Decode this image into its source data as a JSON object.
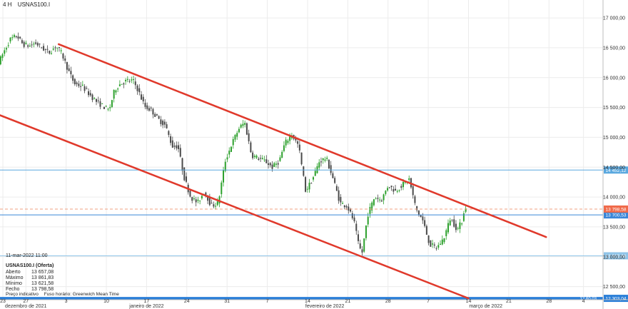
{
  "header": {
    "timeframe": "4 H",
    "symbol": "USNAS100.I"
  },
  "info": {
    "date": "11-mar-2022 11:00",
    "title": "USNAS100.I (Oferta)",
    "rows": [
      {
        "label": "Aberto",
        "value": "13 657,08"
      },
      {
        "label": "Máximo",
        "value": "13 861,83"
      },
      {
        "label": "Mínimo",
        "value": "13 621,58"
      },
      {
        "label": "Fecho",
        "value": "13 798,58"
      }
    ],
    "footer": [
      "Preço indicativo",
      "Fuso horário: Greenwich Mean Time"
    ]
  },
  "chart_data": {
    "type": "candlestick",
    "ylim": [
      12280,
      17300
    ],
    "grid": true,
    "price_ticks": [
      17000,
      16500,
      16000,
      15500,
      15000,
      14500,
      14000,
      13500,
      13000,
      12500
    ],
    "price_tick_labels": [
      "17 000,00",
      "16 500,00",
      "16 000,00",
      "15 500,00",
      "15 000,00",
      "14 500,00",
      "14 000,00",
      "13 500,00",
      "13 000,00",
      "12 500,00"
    ],
    "date_ticks": [
      {
        "day": 23,
        "label": "23"
      },
      {
        "day": 27,
        "label": "27"
      },
      {
        "day": 34,
        "label": "3"
      },
      {
        "day": 41,
        "label": "10"
      },
      {
        "day": 48,
        "label": "17"
      },
      {
        "day": 55,
        "label": "24"
      },
      {
        "day": 62,
        "label": "31"
      },
      {
        "day": 69,
        "label": "7"
      },
      {
        "day": 76,
        "label": "14"
      },
      {
        "day": 83,
        "label": "21"
      },
      {
        "day": 90,
        "label": "28"
      },
      {
        "day": 97,
        "label": "7"
      },
      {
        "day": 104,
        "label": "14"
      },
      {
        "day": 111,
        "label": "21"
      },
      {
        "day": 118,
        "label": "28"
      },
      {
        "day": 124,
        "label": "4"
      }
    ],
    "month_labels": [
      {
        "day": 27,
        "label": "dezembro de 2021"
      },
      {
        "day": 48,
        "label": "janeiro de 2022"
      },
      {
        "day": 79,
        "label": "fevereiro de 2022"
      },
      {
        "day": 107,
        "label": "março de 2022"
      }
    ],
    "xlim": [
      22.5,
      127.4
    ],
    "horizontal_levels": [
      {
        "value": 14452.12,
        "label": "14 452,12",
        "style": "solid",
        "color": "#5aa8df"
      },
      {
        "value": 13700.53,
        "label": "13 700,53",
        "style": "solid",
        "color": "#3a86d8"
      },
      {
        "value": 13015.66,
        "label": "13 015,66",
        "style": "solid",
        "color": "#8fc4e8"
      },
      {
        "value": 13798.58,
        "label": "13 798,58",
        "style": "dashed",
        "color": "#f0a080"
      },
      {
        "value": 12303.04,
        "label": "12 303,04",
        "style": "thick",
        "color": "#2b7fd8"
      }
    ],
    "bottom_bar_text": "12 60 03",
    "trendlines": [
      {
        "from": {
          "day": 32.7,
          "price": 16560
        },
        "to": {
          "day": 117.5,
          "price": 13330
        }
      },
      {
        "from": {
          "day": 22.5,
          "price": 15370
        },
        "to": {
          "day": 104,
          "price": 12303.04
        }
      }
    ],
    "price_path": [
      [
        22.6,
        16250
      ],
      [
        23.6,
        16450
      ],
      [
        24.6,
        16640
      ],
      [
        25.8,
        16700
      ],
      [
        26.8,
        16560
      ],
      [
        28.0,
        16530
      ],
      [
        29.0,
        16580
      ],
      [
        30.4,
        16480
      ],
      [
        31.4,
        16420
      ],
      [
        32.6,
        16530
      ],
      [
        33.6,
        16400
      ],
      [
        34.8,
        16100
      ],
      [
        35.8,
        15900
      ],
      [
        37.2,
        15850
      ],
      [
        38.4,
        15720
      ],
      [
        39.6,
        15600
      ],
      [
        40.8,
        15520
      ],
      [
        41.8,
        15450
      ],
      [
        42.8,
        15800
      ],
      [
        43.8,
        15900
      ],
      [
        45.0,
        15950
      ],
      [
        46.0,
        15950
      ],
      [
        46.8,
        15800
      ],
      [
        48.0,
        15520
      ],
      [
        49.2,
        15450
      ],
      [
        50.4,
        15300
      ],
      [
        51.6,
        15200
      ],
      [
        52.8,
        14850
      ],
      [
        53.8,
        14850
      ],
      [
        54.8,
        14350
      ],
      [
        56.0,
        14000
      ],
      [
        57.2,
        13900
      ],
      [
        58.4,
        14100
      ],
      [
        59.6,
        13850
      ],
      [
        60.8,
        13900
      ],
      [
        62.0,
        14600
      ],
      [
        63.2,
        14900
      ],
      [
        64.4,
        15150
      ],
      [
        65.4,
        15250
      ],
      [
        66.6,
        14700
      ],
      [
        67.8,
        14650
      ],
      [
        69.0,
        14600
      ],
      [
        70.2,
        14500
      ],
      [
        71.4,
        14600
      ],
      [
        72.4,
        14900
      ],
      [
        73.6,
        15050
      ],
      [
        74.8,
        14850
      ],
      [
        76.0,
        14100
      ],
      [
        77.2,
        14300
      ],
      [
        78.4,
        14600
      ],
      [
        79.6,
        14650
      ],
      [
        80.8,
        14300
      ],
      [
        82.0,
        13900
      ],
      [
        83.2,
        13850
      ],
      [
        84.4,
        13600
      ],
      [
        85.2,
        13200
      ],
      [
        85.8,
        13050
      ],
      [
        86.8,
        13700
      ],
      [
        88.0,
        14000
      ],
      [
        89.2,
        13950
      ],
      [
        90.4,
        14200
      ],
      [
        91.6,
        14100
      ],
      [
        92.8,
        14200
      ],
      [
        94.0,
        14300
      ],
      [
        95.2,
        13800
      ],
      [
        96.4,
        13600
      ],
      [
        97.6,
        13200
      ],
      [
        98.8,
        13150
      ],
      [
        100.0,
        13300
      ],
      [
        101.2,
        13650
      ],
      [
        102.4,
        13450
      ],
      [
        103.2,
        13600
      ],
      [
        103.6,
        13798.58
      ]
    ]
  }
}
